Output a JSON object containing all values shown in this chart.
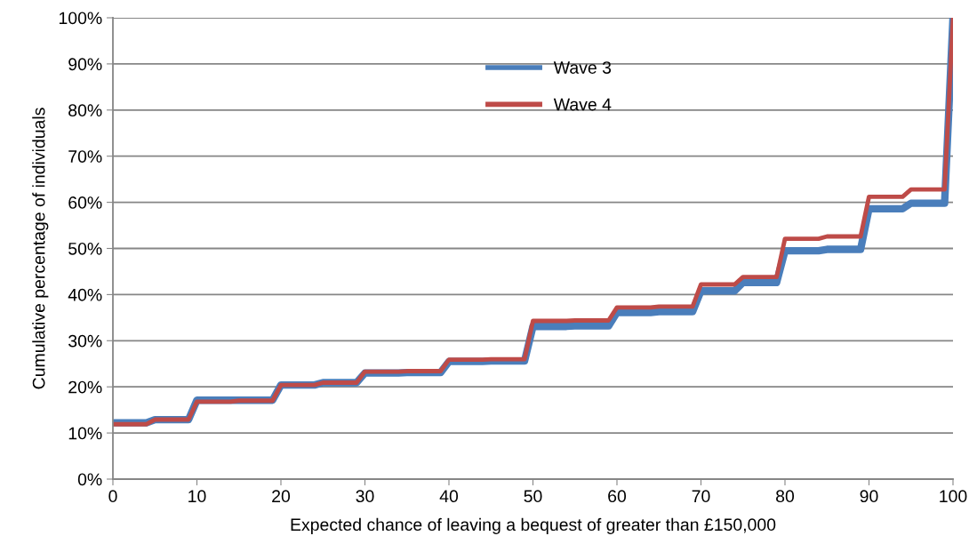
{
  "chart_data": {
    "type": "line",
    "xlabel": "Expected chance of leaving a bequest of greater than £150,000",
    "ylabel": "Cumulative percentage of individuals",
    "x": [
      0,
      4,
      5,
      9,
      10,
      14,
      15,
      19,
      20,
      24,
      25,
      29,
      30,
      34,
      35,
      39,
      40,
      44,
      45,
      49,
      50,
      54,
      55,
      59,
      60,
      64,
      65,
      69,
      70,
      74,
      75,
      79,
      80,
      84,
      85,
      89,
      90,
      94,
      95,
      99,
      100
    ],
    "series": [
      {
        "name": "Wave 3",
        "color": "#4a7ebb",
        "values": [
          12.2,
          12.2,
          12.9,
          12.9,
          17.1,
          17.1,
          17.1,
          17.1,
          20.4,
          20.4,
          20.9,
          20.9,
          23.0,
          23.0,
          23.1,
          23.1,
          25.5,
          25.5,
          25.6,
          25.6,
          33.1,
          33.1,
          33.2,
          33.2,
          36.1,
          36.1,
          36.3,
          36.3,
          40.8,
          40.8,
          42.6,
          42.6,
          49.5,
          49.5,
          49.8,
          49.8,
          58.6,
          58.6,
          59.8,
          59.8,
          100
        ]
      },
      {
        "name": "Wave 4",
        "color": "#be4b48",
        "values": [
          11.9,
          11.9,
          12.9,
          12.9,
          16.8,
          16.8,
          17.0,
          17.0,
          20.4,
          20.4,
          20.9,
          20.9,
          23.3,
          23.3,
          23.4,
          23.4,
          25.9,
          25.9,
          26.0,
          26.0,
          34.3,
          34.3,
          34.4,
          34.4,
          37.2,
          37.2,
          37.4,
          37.4,
          42.2,
          42.2,
          43.8,
          43.8,
          52.1,
          52.1,
          52.6,
          52.6,
          61.2,
          61.2,
          62.8,
          62.8,
          100
        ]
      }
    ],
    "xlim": [
      0,
      100
    ],
    "xticks": [
      0,
      10,
      20,
      30,
      40,
      50,
      60,
      70,
      80,
      90,
      100
    ],
    "ylim": [
      0,
      100
    ],
    "yticks": [
      {
        "value": 0,
        "label": "0%"
      },
      {
        "value": 10,
        "label": "10%"
      },
      {
        "value": 20,
        "label": "20%"
      },
      {
        "value": 30,
        "label": "30%"
      },
      {
        "value": 40,
        "label": "40%"
      },
      {
        "value": 50,
        "label": "50%"
      },
      {
        "value": 60,
        "label": "60%"
      },
      {
        "value": 70,
        "label": "70%"
      },
      {
        "value": 80,
        "label": "80%"
      },
      {
        "value": 90,
        "label": "90%"
      },
      {
        "value": 100,
        "label": "100%"
      }
    ],
    "grid": "y",
    "legend": "top",
    "marker": "none",
    "line_style": "solid"
  }
}
